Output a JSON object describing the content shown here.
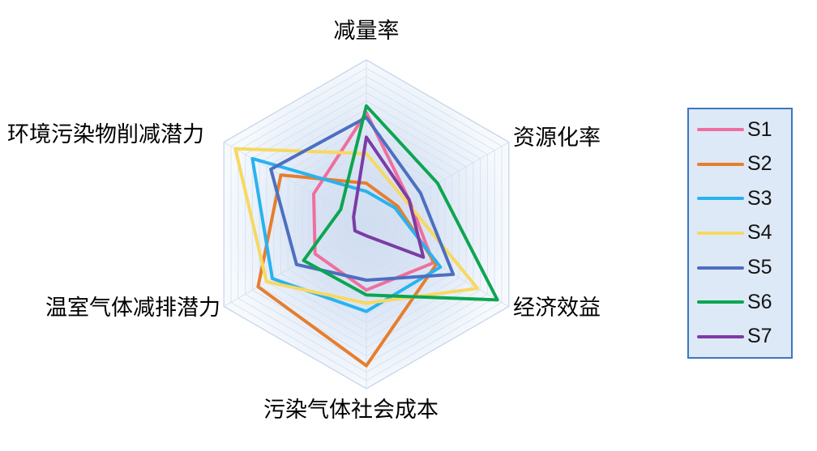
{
  "chart_data": {
    "type": "radar",
    "title": "",
    "categories": [
      "减量率",
      "资源化率",
      "经济效益",
      "污染气体社会成本",
      "温室气体减排潜力",
      "环境污染物削减潜力"
    ],
    "series": [
      {
        "name": "S1",
        "color": "#f06e9f",
        "values": [
          0.68,
          0.3,
          0.47,
          0.4,
          0.36,
          0.37
        ]
      },
      {
        "name": "S2",
        "color": "#e67e2e",
        "values": [
          0.25,
          0.22,
          0.49,
          0.86,
          0.76,
          0.6
        ]
      },
      {
        "name": "S3",
        "color": "#29b2ef",
        "values": [
          0.2,
          0.2,
          0.52,
          0.53,
          0.66,
          0.8
        ]
      },
      {
        "name": "S4",
        "color": "#f7d861",
        "values": [
          0.43,
          0.28,
          0.78,
          0.48,
          0.7,
          0.92
        ]
      },
      {
        "name": "S5",
        "color": "#4d6fc0",
        "values": [
          0.65,
          0.38,
          0.61,
          0.34,
          0.49,
          0.67
        ]
      },
      {
        "name": "S6",
        "color": "#0da551",
        "values": [
          0.72,
          0.5,
          0.92,
          0.43,
          0.44,
          0.18
        ]
      },
      {
        "name": "S7",
        "color": "#7b3ca5",
        "values": [
          0.53,
          0.3,
          0.4,
          0.07,
          0.08,
          0.09
        ]
      }
    ],
    "rmin": 0,
    "rmax": 1,
    "rings": 20,
    "grid_on": true,
    "legend_position": "right",
    "grid_line_color": "#d2def1",
    "grid_border_color": "#c6d5ec",
    "fill_center_color": "#d0ddf0",
    "fill_mid_color": "#dce7f5",
    "fill_edge_color": "#f7fafd"
  },
  "legend": {
    "entries": [
      "S1",
      "S2",
      "S3",
      "S4",
      "S5",
      "S6",
      "S7"
    ],
    "border_color": "#3b78c2",
    "background_color": "#dde9f6"
  }
}
